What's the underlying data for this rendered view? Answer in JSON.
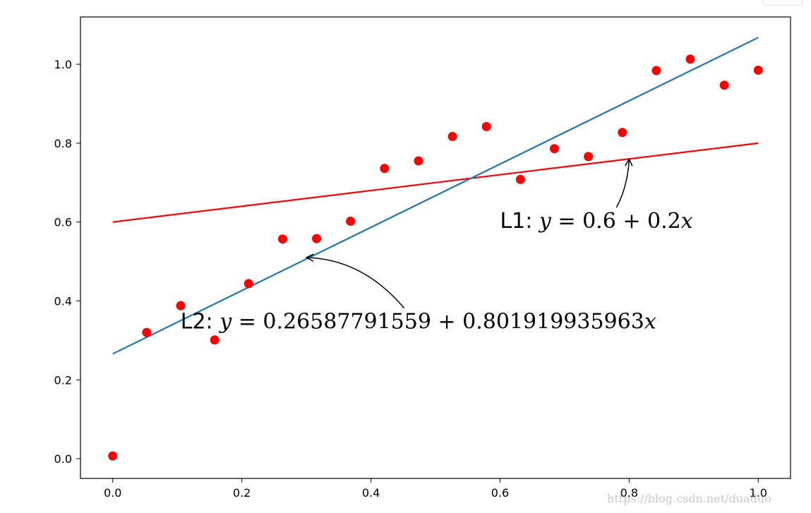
{
  "chart_data": {
    "type": "scatter",
    "xlim": [
      -0.05,
      1.05
    ],
    "ylim": [
      -0.05,
      1.12
    ],
    "xticks": [
      0.0,
      0.2,
      0.4,
      0.6,
      0.8,
      1.0
    ],
    "xtick_labels": [
      "0.0",
      "0.2",
      "0.4",
      "0.6",
      "0.8",
      "1.0"
    ],
    "yticks": [
      0.0,
      0.2,
      0.4,
      0.6,
      0.8,
      1.0
    ],
    "ytick_labels": [
      "0.0",
      "0.2",
      "0.4",
      "0.6",
      "0.8",
      "1.0"
    ],
    "grid": false,
    "points": {
      "color": "#ff0000",
      "x": [
        0.0,
        0.0526,
        0.1053,
        0.1579,
        0.2105,
        0.2632,
        0.3158,
        0.3684,
        0.4211,
        0.4737,
        0.5263,
        0.5789,
        0.6316,
        0.6842,
        0.7368,
        0.7895,
        0.8421,
        0.8947,
        0.9474,
        1.0
      ],
      "y": [
        0.007,
        0.32,
        0.388,
        0.301,
        0.444,
        0.557,
        0.558,
        0.602,
        0.736,
        0.755,
        0.817,
        0.842,
        0.708,
        0.786,
        0.766,
        0.827,
        0.984,
        1.013,
        0.947,
        0.985
      ]
    },
    "lines": [
      {
        "intercept": 0.6,
        "slope": 0.2,
        "color": "#ff0000"
      },
      {
        "intercept": 0.26587791559,
        "slope": 0.801919935963,
        "color": "#1f77b4"
      }
    ],
    "annotations": [
      {
        "prefix": "L1: ",
        "var_y": "y",
        "expr": " = 0.6 + 0.2",
        "var_x": "x",
        "arrow_target": [
          0.8,
          0.76
        ],
        "text_pos": [
          0.6,
          0.585
        ]
      },
      {
        "prefix": "L2: ",
        "var_y": "y",
        "expr": " = 0.26587791559 + 0.801919935963",
        "var_x": "x",
        "arrow_target": [
          0.3,
          0.51
        ],
        "text_pos": [
          0.105,
          0.33
        ]
      }
    ]
  },
  "watermark": "https://blog.csdn.net/duaduo"
}
